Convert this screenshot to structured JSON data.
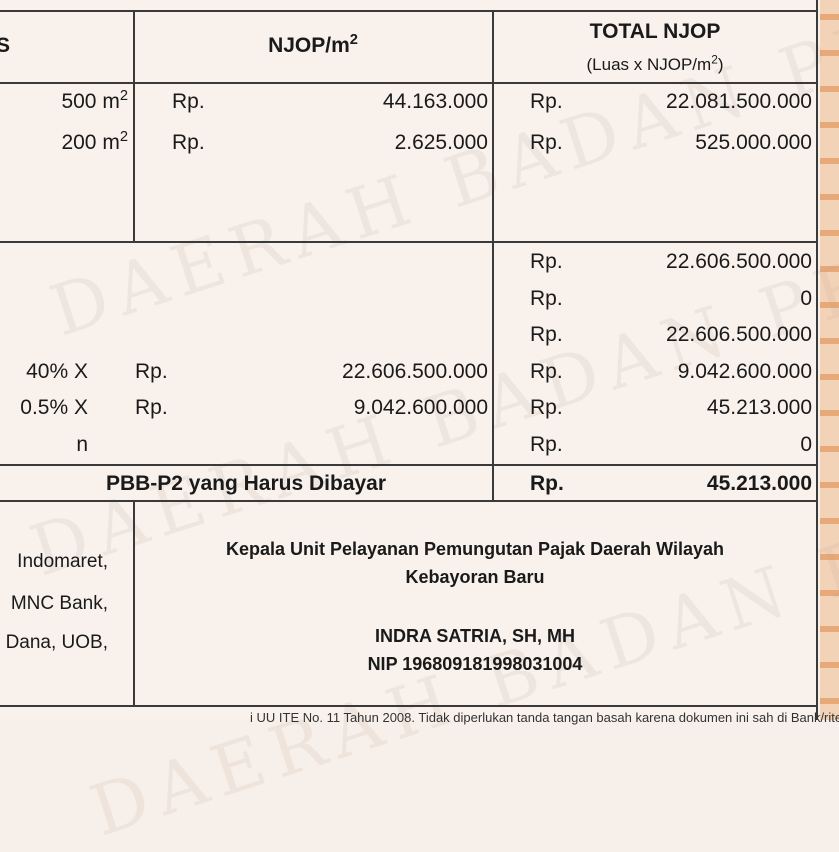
{
  "header": {
    "col_area_partial": "S",
    "col_njop": "NJOP/m",
    "col_njop_sup": "2",
    "col_total": "TOTAL NJOP",
    "col_total_sub": "(Luas x NJOP/m",
    "col_total_sub_sup": "2",
    "col_total_sub_end": ")"
  },
  "objects": [
    {
      "area": "500 m",
      "area_sup": "2",
      "currency": "Rp.",
      "njop": "44.163.000",
      "total_currency": "Rp.",
      "total": "22.081.500.000"
    },
    {
      "area": "200 m",
      "area_sup": "2",
      "currency": "Rp.",
      "njop": "2.625.000",
      "total_currency": "Rp.",
      "total": "525.000.000"
    }
  ],
  "summary": [
    {
      "left": "",
      "currency": "",
      "base": "",
      "total_currency": "Rp.",
      "total": "22.606.500.000"
    },
    {
      "left": "",
      "currency": "",
      "base": "",
      "total_currency": "Rp.",
      "total": "0"
    },
    {
      "left": "",
      "currency": "",
      "base": "",
      "total_currency": "Rp.",
      "total": "22.606.500.000"
    },
    {
      "left": "40% X",
      "currency": "Rp.",
      "base": "22.606.500.000",
      "total_currency": "Rp.",
      "total": "9.042.600.000"
    },
    {
      "left": "0.5% X",
      "currency": "Rp.",
      "base": "9.042.600.000",
      "total_currency": "Rp.",
      "total": "45.213.000"
    },
    {
      "left": "n",
      "currency": "",
      "base": "",
      "total_currency": "Rp.",
      "total": "0"
    }
  ],
  "due": {
    "label": "PBB-P2 yang Harus Dibayar",
    "currency": "Rp.",
    "amount": "45.213.000"
  },
  "payment_partial": [
    "Indomaret,",
    "MNC Bank,",
    "Dana, UOB,"
  ],
  "signature": {
    "title_line1": "Kepala Unit Pelayanan Pemungutan Pajak Daerah Wilayah",
    "title_line2": "Kebayoran Baru",
    "name": "INDRA SATRIA, SH, MH",
    "nip": "NIP 196809181998031004"
  },
  "watermark": "DAERAH BADAN PENDAPATAN",
  "footer_partial": "i UU ITE No. 11 Tahun 2008. Tidak diperlukan tanda tangan basah karena dokumen ini sah di Bank/ritel",
  "colors": {
    "paper": "#f8f1ec",
    "border_decoration": "#e8a978",
    "line": "#3a3a3a"
  }
}
